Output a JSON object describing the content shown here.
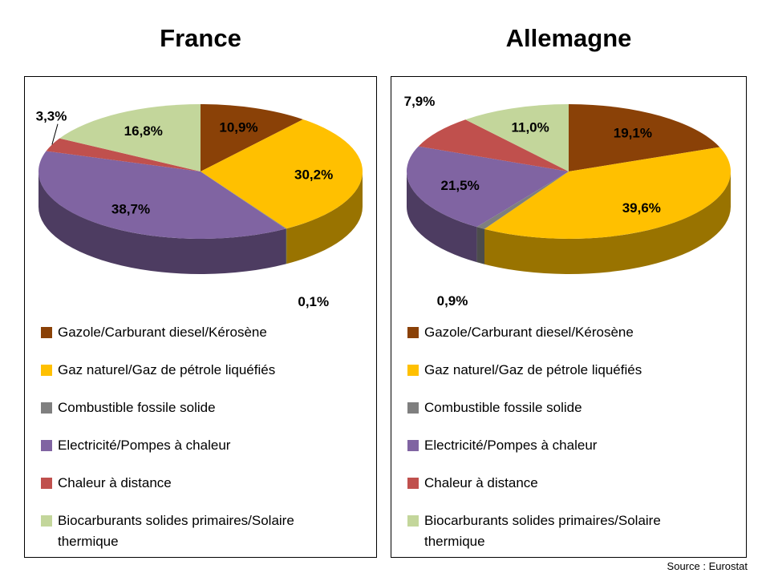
{
  "source": "Source : Eurostat",
  "legend": [
    {
      "label": "Gazole/Carburant diesel/Kérosène",
      "color": "#8a4107"
    },
    {
      "label": "Gaz naturel/Gaz de pétrole liquéfiés",
      "color": "#ffc000"
    },
    {
      "label": "Combustible fossile solide",
      "color": "#7f7f7f"
    },
    {
      "label": "Electricité/Pompes à chaleur",
      "color": "#8064a2"
    },
    {
      "label": "Chaleur à distance",
      "color": "#c0504d"
    },
    {
      "label": "Biocarburants solides primaires/Solaire thermique",
      "color": "#c3d69b"
    }
  ],
  "chart_data": [
    {
      "type": "pie",
      "style": "3d",
      "title": "France",
      "categories": [
        "Gazole/Carburant diesel/Kérosène",
        "Gaz naturel/Gaz de pétrole liquéfiés",
        "Combustible fossile solide",
        "Electricité/Pompes à chaleur",
        "Chaleur à distance",
        "Biocarburants solides primaires/Solaire thermique"
      ],
      "values": [
        10.9,
        30.2,
        0.1,
        38.7,
        3.3,
        16.8
      ],
      "labels": [
        "10,9%",
        "30,2%",
        "0,1%",
        "38,7%",
        "3,3%",
        "16,8%"
      ],
      "colors": [
        "#8a4107",
        "#ffc000",
        "#7f7f7f",
        "#8064a2",
        "#c0504d",
        "#c3d69b"
      ],
      "start_angle_deg": 0,
      "direction": "clockwise",
      "legend_position": "bottom"
    },
    {
      "type": "pie",
      "style": "3d",
      "title": "Allemagne",
      "categories": [
        "Gazole/Carburant diesel/Kérosène",
        "Gaz naturel/Gaz de pétrole liquéfiés",
        "Combustible fossile solide",
        "Electricité/Pompes à chaleur",
        "Chaleur à distance",
        "Biocarburants solides primaires/Solaire thermique"
      ],
      "values": [
        19.1,
        39.6,
        0.9,
        21.5,
        7.9,
        11.0
      ],
      "labels": [
        "19,1%",
        "39,6%",
        "0,9%",
        "21,5%",
        "7,9%",
        "11,0%"
      ],
      "colors": [
        "#8a4107",
        "#ffc000",
        "#7f7f7f",
        "#8064a2",
        "#c0504d",
        "#c3d69b"
      ],
      "start_angle_deg": 0,
      "direction": "clockwise",
      "legend_position": "bottom"
    }
  ]
}
